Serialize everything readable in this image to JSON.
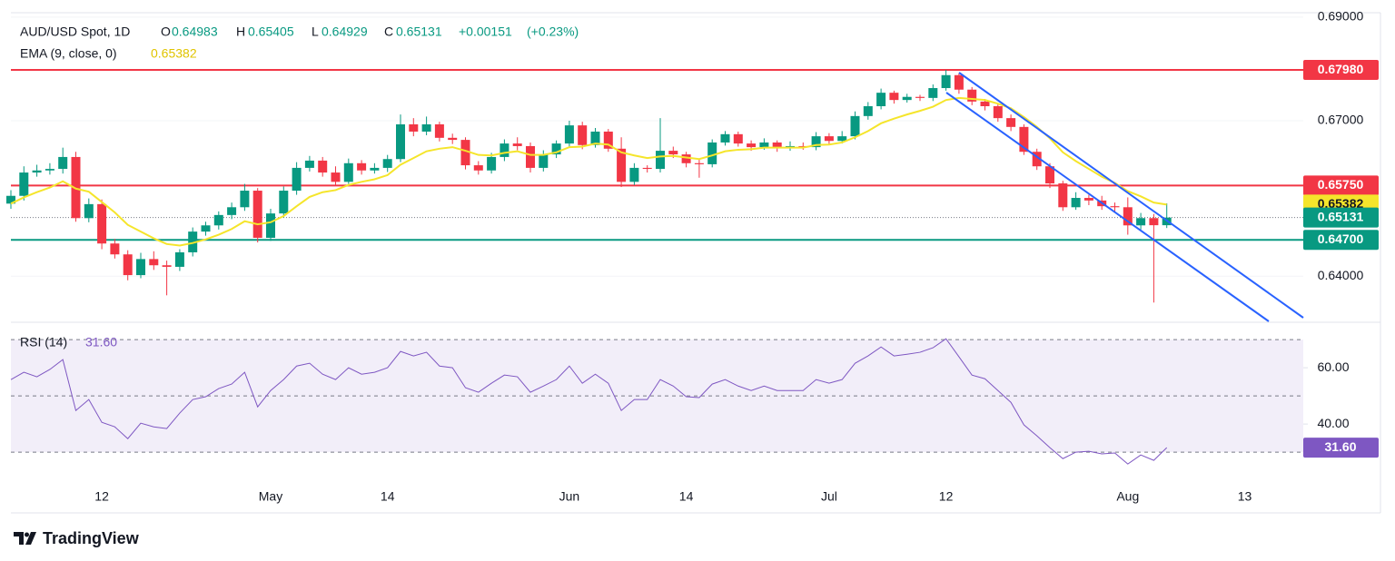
{
  "branding": "TradingView",
  "chart_data": {
    "type": "candlestick",
    "title": "AUD/USD Spot, 1D",
    "quote": [
      {
        "key": "O",
        "value": 0.64983
      },
      {
        "key": "H",
        "value": 0.65405
      },
      {
        "key": "L",
        "value": 0.64929
      },
      {
        "key": "C",
        "value": 0.65131
      }
    ],
    "change": {
      "value": 0.00151,
      "label": "+0.00151"
    },
    "change_percent": {
      "value": 0.23,
      "label": "(+0.23%)"
    },
    "up_color": "#089981",
    "down_color": "#f23645",
    "categories": [
      null,
      null,
      null,
      null,
      null,
      null,
      null,
      "12",
      null,
      null,
      null,
      null,
      null,
      null,
      null,
      null,
      null,
      null,
      null,
      null,
      "May",
      null,
      null,
      null,
      null,
      null,
      null,
      null,
      null,
      "14",
      null,
      null,
      null,
      null,
      null,
      null,
      null,
      null,
      null,
      null,
      null,
      null,
      null,
      "Jun",
      null,
      null,
      null,
      null,
      null,
      null,
      null,
      null,
      "14",
      null,
      null,
      null,
      null,
      null,
      null,
      null,
      null,
      null,
      null,
      "Jul",
      null,
      null,
      null,
      null,
      null,
      null,
      null,
      null,
      "12",
      null,
      null,
      null,
      null,
      null,
      null,
      null,
      null,
      null,
      null,
      null,
      null,
      null,
      "Aug",
      null,
      null,
      null,
      null,
      null,
      null,
      null,
      null,
      "13",
      null,
      null,
      null,
      null
    ],
    "open": [
      0.654,
      0.6555,
      0.66,
      0.6604,
      0.6607,
      0.663,
      0.6512,
      0.6539,
      0.6463,
      0.6442,
      0.6402,
      0.6433,
      0.6421,
      0.6418,
      0.6446,
      0.6486,
      0.6498,
      0.6518,
      0.6533,
      0.6565,
      0.6474,
      0.6521,
      0.6565,
      0.6609,
      0.6623,
      0.66,
      0.6582,
      0.6618,
      0.6604,
      0.6609,
      0.6626,
      0.6693,
      0.6679,
      0.6693,
      0.6667,
      0.6663,
      0.6614,
      0.6604,
      0.663,
      0.6656,
      0.6651,
      0.6609,
      0.6635,
      0.6656,
      0.6691,
      0.6653,
      0.6679,
      0.6646,
      0.6582,
      0.6609,
      0.6607,
      0.6642,
      0.6635,
      0.6618,
      0.6616,
      0.6658,
      0.6674,
      0.6656,
      0.6649,
      0.6658,
      0.6647,
      0.6651,
      0.6649,
      0.667,
      0.6661,
      0.667,
      0.6709,
      0.6728,
      0.6754,
      0.674,
      0.6746,
      0.6744,
      0.6763,
      0.6788,
      0.676,
      0.6737,
      0.6728,
      0.6705,
      0.6688,
      0.664,
      0.6612,
      0.6579,
      0.6533,
      0.6551,
      0.6546,
      0.6535,
      0.6533,
      0.6498,
      0.6512,
      0.64983,
      null,
      null,
      null,
      null,
      null,
      null,
      null,
      null,
      null,
      null
    ],
    "high": [
      0.6566,
      0.6612,
      0.6615,
      0.6618,
      0.6648,
      0.664,
      0.655,
      0.6548,
      0.6472,
      0.645,
      0.6445,
      0.6448,
      0.643,
      0.6452,
      0.6494,
      0.6505,
      0.6525,
      0.6542,
      0.6578,
      0.657,
      0.653,
      0.6573,
      0.662,
      0.6632,
      0.663,
      0.6612,
      0.6627,
      0.6624,
      0.6618,
      0.6634,
      0.6712,
      0.6705,
      0.6708,
      0.6698,
      0.6675,
      0.6668,
      0.6622,
      0.6638,
      0.6664,
      0.6668,
      0.6658,
      0.6643,
      0.6662,
      0.67,
      0.6698,
      0.6686,
      0.6684,
      0.6668,
      0.6618,
      0.6614,
      0.6705,
      0.665,
      0.664,
      0.6626,
      0.6664,
      0.668,
      0.6679,
      0.6662,
      0.6666,
      0.6662,
      0.666,
      0.6658,
      0.6678,
      0.6676,
      0.668,
      0.6718,
      0.6736,
      0.6762,
      0.6758,
      0.6752,
      0.675,
      0.677,
      0.6798,
      0.6792,
      0.6765,
      0.6742,
      0.6734,
      0.6712,
      0.6693,
      0.6646,
      0.6618,
      0.6584,
      0.6562,
      0.6557,
      0.6555,
      0.6542,
      0.6552,
      0.6522,
      0.652,
      0.65405,
      null,
      null,
      null,
      null,
      null,
      null,
      null,
      null,
      null,
      null
    ],
    "low": [
      0.653,
      0.6546,
      0.6592,
      0.6596,
      0.6598,
      0.6505,
      0.6504,
      0.6452,
      0.6434,
      0.6392,
      0.6396,
      0.6412,
      0.6363,
      0.641,
      0.6438,
      0.6478,
      0.649,
      0.651,
      0.6526,
      0.6465,
      0.6468,
      0.6513,
      0.6557,
      0.6602,
      0.6592,
      0.6575,
      0.6578,
      0.6596,
      0.6598,
      0.6601,
      0.662,
      0.667,
      0.6672,
      0.666,
      0.6655,
      0.6606,
      0.6596,
      0.6598,
      0.6622,
      0.6643,
      0.66,
      0.6602,
      0.6628,
      0.6648,
      0.6645,
      0.6648,
      0.664,
      0.6572,
      0.6576,
      0.66,
      0.66,
      0.6628,
      0.661,
      0.659,
      0.661,
      0.6652,
      0.665,
      0.6642,
      0.6644,
      0.664,
      0.6642,
      0.6644,
      0.6643,
      0.6654,
      0.6656,
      0.6664,
      0.6702,
      0.6722,
      0.6733,
      0.6735,
      0.6738,
      0.6738,
      0.6758,
      0.6752,
      0.673,
      0.672,
      0.6698,
      0.668,
      0.6634,
      0.6605,
      0.657,
      0.6526,
      0.6528,
      0.6537,
      0.6528,
      0.6525,
      0.648,
      0.649,
      0.6349,
      0.64929,
      null,
      null,
      null,
      null,
      null,
      null,
      null,
      null,
      null,
      null
    ],
    "close": [
      0.6555,
      0.66,
      0.6604,
      0.6607,
      0.663,
      0.6512,
      0.6539,
      0.6463,
      0.6442,
      0.6402,
      0.6433,
      0.6421,
      0.6418,
      0.6446,
      0.6486,
      0.6498,
      0.6518,
      0.6533,
      0.6565,
      0.6474,
      0.6521,
      0.6565,
      0.6609,
      0.6623,
      0.66,
      0.6582,
      0.6618,
      0.6604,
      0.6609,
      0.6626,
      0.6693,
      0.6679,
      0.6693,
      0.6667,
      0.6663,
      0.6614,
      0.6604,
      0.663,
      0.6656,
      0.6651,
      0.6609,
      0.6635,
      0.6656,
      0.6691,
      0.6653,
      0.6679,
      0.6646,
      0.6582,
      0.6609,
      0.6607,
      0.6642,
      0.6635,
      0.6618,
      0.6616,
      0.6658,
      0.6674,
      0.6656,
      0.6649,
      0.6658,
      0.6647,
      0.6651,
      0.6649,
      0.667,
      0.6661,
      0.667,
      0.6709,
      0.6728,
      0.6754,
      0.674,
      0.6746,
      0.6744,
      0.6763,
      0.6788,
      0.676,
      0.6737,
      0.6728,
      0.6705,
      0.6688,
      0.664,
      0.6612,
      0.6579,
      0.6533,
      0.6551,
      0.6546,
      0.6535,
      0.6533,
      0.6498,
      0.6512,
      0.64983,
      0.65131,
      null,
      null,
      null,
      null,
      null,
      null,
      null,
      null,
      null,
      null
    ],
    "ylim": [
      0.6311,
      0.6933
    ],
    "yticks": [
      {
        "value": 0.69,
        "label": "0.69000"
      },
      {
        "value": 0.67,
        "label": "0.67000"
      },
      {
        "value": 0.64,
        "label": "0.64000"
      }
    ],
    "levels": [
      {
        "value": 0.6798,
        "label": "0.67980",
        "color": "#f23645"
      },
      {
        "value": 0.6575,
        "label": "0.65750",
        "color": "#f23645"
      },
      {
        "value": 0.647,
        "label": "0.64700",
        "color": "#089981"
      }
    ],
    "last_price": {
      "value": 0.65131,
      "label": "0.65131",
      "color": "#089981"
    },
    "ema": {
      "name": "EMA (9, close, 0)",
      "color": "#f5e52b",
      "values": [
        0.654,
        0.6552,
        0.6562,
        0.6571,
        0.6583,
        0.6569,
        0.6563,
        0.6543,
        0.6523,
        0.6499,
        0.6486,
        0.6473,
        0.6462,
        0.6459,
        0.6464,
        0.6471,
        0.648,
        0.6491,
        0.6506,
        0.65,
        0.6504,
        0.6516,
        0.6535,
        0.6553,
        0.6562,
        0.6566,
        0.6576,
        0.6582,
        0.6587,
        0.6595,
        0.6615,
        0.6628,
        0.6641,
        0.6646,
        0.6649,
        0.6642,
        0.6634,
        0.6633,
        0.6638,
        0.6641,
        0.6634,
        0.6634,
        0.6639,
        0.6649,
        0.665,
        0.6656,
        0.6654,
        0.6639,
        0.6633,
        0.6628,
        0.6631,
        0.6632,
        0.6629,
        0.6626,
        0.6633,
        0.6641,
        0.6644,
        0.6645,
        0.6648,
        0.6648,
        0.6648,
        0.6648,
        0.6653,
        0.6654,
        0.6658,
        0.6668,
        0.668,
        0.6695,
        0.6704,
        0.6712,
        0.6719,
        0.6727,
        0.674,
        0.6744,
        0.6742,
        0.674,
        0.6733,
        0.6724,
        0.6707,
        0.6688,
        0.6666,
        0.6639,
        0.6622,
        0.6607,
        0.6592,
        0.658,
        0.6564,
        0.6554,
        0.6542,
        0.65382,
        null,
        null,
        null,
        null,
        null,
        null,
        null,
        null,
        null,
        null
      ],
      "last": {
        "value": 0.65382,
        "label": "0.65382"
      }
    },
    "rsi": {
      "name": "RSI (14)",
      "color": "#7e57c2",
      "values": [
        55.8,
        58.4,
        56.8,
        59.4,
        62.9,
        44.8,
        48.7,
        40.6,
        39,
        34.8,
        40.3,
        39,
        38.4,
        43.9,
        48.7,
        49.7,
        52.6,
        54.2,
        58.4,
        46.1,
        51.9,
        55.8,
        60.6,
        61.6,
        57.7,
        55.8,
        60,
        57.7,
        58.4,
        60,
        65.8,
        64.2,
        65.5,
        60.6,
        60,
        52.9,
        51.3,
        54.5,
        57.4,
        56.8,
        51.3,
        53.5,
        55.8,
        60.6,
        54.5,
        57.7,
        54.5,
        44.8,
        48.7,
        48.7,
        55.8,
        53.5,
        49.7,
        49.4,
        54.2,
        55.8,
        53.5,
        51.9,
        53.5,
        51.9,
        51.9,
        51.9,
        55.8,
        54.5,
        55.8,
        61.6,
        64.2,
        67.4,
        64.2,
        64.8,
        65.5,
        67.1,
        70.3,
        63.9,
        57.4,
        56.1,
        51.9,
        47.7,
        39.7,
        35.8,
        31.6,
        27.7,
        30,
        30.3,
        29.4,
        29.7,
        25.8,
        29,
        27.1,
        31.6,
        null,
        null,
        null,
        null,
        null,
        null,
        null,
        null,
        null,
        null
      ],
      "last": {
        "value": 31.6,
        "label": "31.60"
      },
      "ylim": [
        18.1,
        75.2
      ],
      "yticks": [
        {
          "value": 60,
          "label": "60.00"
        },
        {
          "value": 40,
          "label": "40.00"
        }
      ],
      "levels": [
        30,
        50,
        70
      ]
    }
  }
}
